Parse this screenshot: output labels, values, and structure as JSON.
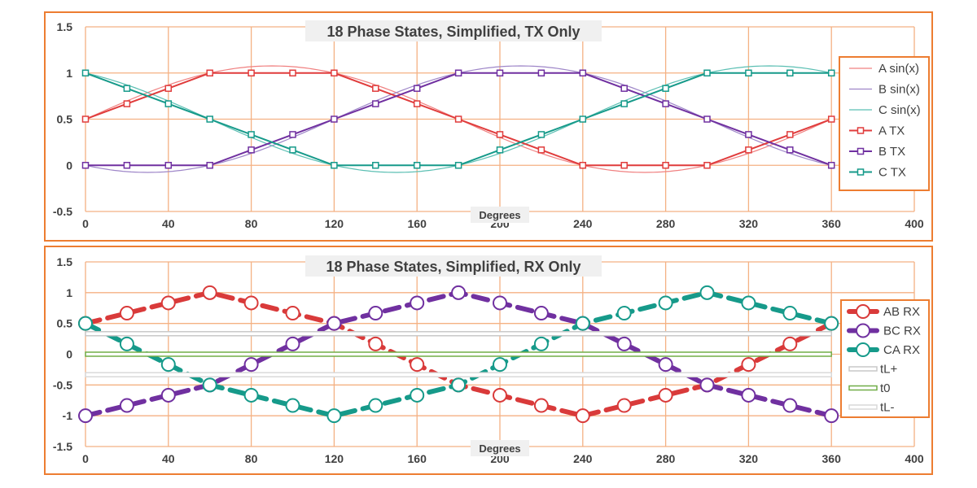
{
  "chart_data": [
    {
      "type": "line",
      "title": "18 Phase States, Simplified, TX Only",
      "xlabel": "Degrees",
      "ylabel": "",
      "xlim": [
        0,
        400
      ],
      "ylim": [
        -0.5,
        1.5
      ],
      "xticks": [
        0,
        40,
        80,
        120,
        160,
        200,
        240,
        280,
        320,
        360,
        400
      ],
      "yticks": [
        -0.5,
        0,
        0.5,
        1,
        1.5
      ],
      "ytick_labels": [
        "-0.5",
        "0",
        "0.5",
        "1",
        "1.5"
      ],
      "grid": true,
      "legend_position": "right",
      "x": [
        0,
        20,
        40,
        60,
        80,
        100,
        120,
        140,
        160,
        180,
        200,
        220,
        240,
        260,
        280,
        300,
        320,
        340,
        360
      ],
      "series": [
        {
          "name": "A sin(x)",
          "style": "thin",
          "color": "#F08080",
          "function": "0.5+0.577*sin(x)"
        },
        {
          "name": "B sin(x)",
          "style": "thin",
          "color": "#9E86C8",
          "function": "0.5+0.577*sin(x-120)"
        },
        {
          "name": "C sin(x)",
          "style": "thin",
          "color": "#5BBFB3",
          "function": "0.5+0.577*sin(x+120)"
        },
        {
          "name": "A TX",
          "style": "marker",
          "color": "#E03C3C",
          "values": [
            0.5,
            0.6667,
            0.8333,
            1,
            1,
            1,
            1,
            0.8333,
            0.6667,
            0.5,
            0.3333,
            0.1667,
            0,
            0,
            0,
            0,
            0.1667,
            0.3333,
            0.5
          ]
        },
        {
          "name": "B TX",
          "style": "marker",
          "color": "#7030A0",
          "values": [
            0,
            0,
            0,
            0,
            0.1667,
            0.3333,
            0.5,
            0.6667,
            0.8333,
            1,
            1,
            1,
            1,
            0.8333,
            0.6667,
            0.5,
            0.3333,
            0.1667,
            0
          ]
        },
        {
          "name": "C TX",
          "style": "marker",
          "color": "#169A8A",
          "values": [
            1,
            0.8333,
            0.6667,
            0.5,
            0.3333,
            0.1667,
            0,
            0,
            0,
            0,
            0.1667,
            0.3333,
            0.5,
            0.6667,
            0.8333,
            1,
            1,
            1,
            1
          ]
        }
      ]
    },
    {
      "type": "line",
      "title": "18 Phase States, Simplified, RX Only",
      "xlabel": "Degrees",
      "ylabel": "",
      "xlim": [
        0,
        400
      ],
      "ylim": [
        -1.5,
        1.5
      ],
      "xticks": [
        0,
        40,
        80,
        120,
        160,
        200,
        240,
        280,
        320,
        360,
        400
      ],
      "yticks": [
        -1.5,
        -1,
        -0.5,
        0,
        0.5,
        1,
        1.5
      ],
      "ytick_labels": [
        "-1.5",
        "-1",
        "-0.5",
        "0",
        "0.5",
        "1",
        "1.5"
      ],
      "grid": true,
      "legend_position": "right",
      "x": [
        0,
        20,
        40,
        60,
        80,
        100,
        120,
        140,
        160,
        180,
        200,
        220,
        240,
        260,
        280,
        300,
        320,
        340,
        360
      ],
      "series": [
        {
          "name": "AB RX",
          "style": "dashed-circle",
          "color": "#D93A3A",
          "values": [
            0.5,
            0.6667,
            0.8333,
            1,
            0.8333,
            0.6667,
            0.5,
            0.1667,
            -0.1667,
            -0.5,
            -0.6667,
            -0.8333,
            -1,
            -0.8333,
            -0.6667,
            -0.5,
            -0.1667,
            0.1667,
            0.5
          ]
        },
        {
          "name": "BC RX",
          "style": "dashed-circle",
          "color": "#7030A0",
          "values": [
            -1,
            -0.8333,
            -0.6667,
            -0.5,
            -0.1667,
            0.1667,
            0.5,
            0.6667,
            0.8333,
            1,
            0.8333,
            0.6667,
            0.5,
            0.1667,
            -0.1667,
            -0.5,
            -0.6667,
            -0.8333,
            -1
          ]
        },
        {
          "name": "CA RX",
          "style": "dashed-circle",
          "color": "#169A8A",
          "values": [
            0.5,
            0.1667,
            -0.1667,
            -0.5,
            -0.6667,
            -0.8333,
            -1,
            -0.8333,
            -0.6667,
            -0.5,
            -0.1667,
            0.1667,
            0.5,
            0.6667,
            0.8333,
            1,
            0.8333,
            0.6667,
            0.5
          ]
        },
        {
          "name": "tL+",
          "style": "band",
          "color": "#C8C8C8",
          "value": 0.3333
        },
        {
          "name": "t0",
          "style": "band",
          "color": "#70AD47",
          "value": 0
        },
        {
          "name": "tL-",
          "style": "band",
          "color": "#D9D9D9",
          "value": -0.3333
        }
      ]
    }
  ]
}
